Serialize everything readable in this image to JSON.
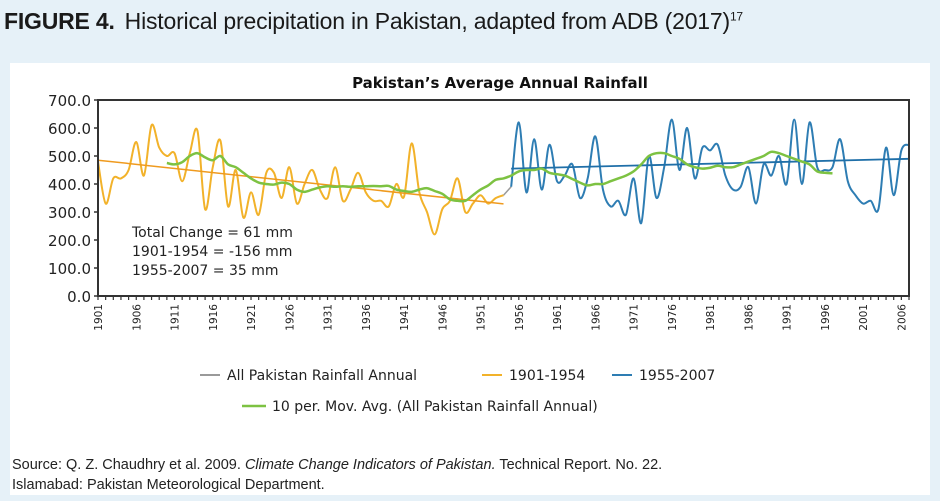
{
  "figure": {
    "number_label": "FIGURE 4.",
    "caption": "Historical precipitation in Pakistan, adapted from ADB (2017)",
    "footnote_ref": "17"
  },
  "source": {
    "prefix": "Source: Q. Z. Chaudhry et al. 2009. ",
    "title_italic": "Climate Change Indicators of Pakistan.",
    "suffix": " Technical Report. No. 22.",
    "line2": "Islamabad: Pakistan Meteorological Department."
  },
  "chart_data": {
    "type": "line",
    "title": "Pakistan’s Average Annual Rainfall",
    "xlabel": "",
    "ylabel": "",
    "xlim": [
      1901,
      2007
    ],
    "ylim": [
      0,
      700
    ],
    "y_ticks": [
      "0.0",
      "100.0",
      "200.0",
      "300.0",
      "400.0",
      "500.0",
      "600.0",
      "700.0"
    ],
    "x_ticks": [
      "1901",
      "1906",
      "1911",
      "1916",
      "1921",
      "1926",
      "1931",
      "1936",
      "1941",
      "1946",
      "1951",
      "1956",
      "1961",
      "1966",
      "1971",
      "1976",
      "1981",
      "1986",
      "1991",
      "1996",
      "2001",
      "2006"
    ],
    "grid": false,
    "legend_position": "bottom",
    "annotations": [
      "Total Change = 61 mm",
      "1901-1954 = -156 mm",
      "1955-2007 = 35 mm"
    ],
    "legend": [
      {
        "label": "All Pakistan Rainfall Annual",
        "color": "#9a9a9a"
      },
      {
        "label": "1901-1954",
        "color": "#f2b22a"
      },
      {
        "label": "1955-2007",
        "color": "#2e7db3"
      },
      {
        "label": "10 per. Mov. Avg. (All Pakistan Rainfall Annual)",
        "color": "#7dc242"
      }
    ],
    "colors": {
      "all": "#9a9a9a",
      "early": "#f2b22a",
      "late": "#2e7db3",
      "early_trend": "#ef9a1e",
      "late_trend": "#1f6fa8",
      "moving_avg": "#7dc242"
    },
    "series": [
      {
        "name": "1901-1954",
        "x_start": 1901,
        "values": [
          480,
          330,
          420,
          420,
          450,
          550,
          430,
          610,
          530,
          500,
          510,
          410,
          510,
          590,
          310,
          460,
          555,
          320,
          450,
          280,
          370,
          290,
          440,
          440,
          350,
          460,
          330,
          400,
          450,
          380,
          350,
          460,
          340,
          380,
          440,
          370,
          340,
          340,
          320,
          400,
          355,
          545,
          370,
          300,
          220,
          310,
          340,
          420,
          300,
          330,
          360,
          330,
          350,
          360
        ]
      },
      {
        "name": "1955-2007",
        "x_start": 1955,
        "values": [
          390,
          620,
          370,
          560,
          380,
          540,
          410,
          430,
          470,
          350,
          420,
          570,
          380,
          320,
          340,
          290,
          420,
          260,
          500,
          350,
          460,
          630,
          450,
          600,
          420,
          530,
          520,
          540,
          430,
          380,
          390,
          460,
          330,
          470,
          430,
          500,
          400,
          630,
          400,
          620,
          460,
          450,
          460,
          560,
          410,
          360,
          330,
          340,
          310,
          530,
          360,
          520,
          540
        ]
      },
      {
        "name": "All Pakistan Rainfall Annual",
        "note": "transition segment connecting the two periods",
        "x": [
          1954,
          1955
        ],
        "values": [
          360,
          390
        ]
      },
      {
        "name": "1901-1954 linear trend",
        "x": [
          1901,
          1954
        ],
        "values": [
          485,
          329
        ]
      },
      {
        "name": "1955-2007 linear trend",
        "x": [
          1955,
          2007
        ],
        "values": [
          455,
          490
        ]
      },
      {
        "name": "10 per. Mov. Avg. (All Pakistan Rainfall Annual)",
        "x_start": 1910,
        "values": [
          475,
          470,
          478,
          500,
          510,
          495,
          485,
          500,
          470,
          460,
          440,
          420,
          405,
          400,
          398,
          405,
          400,
          380,
          372,
          380,
          388,
          392,
          390,
          392,
          390,
          392,
          392,
          393,
          392,
          393,
          380,
          375,
          372,
          380,
          385,
          375,
          365,
          345,
          340,
          340,
          360,
          380,
          395,
          415,
          420,
          430,
          445,
          450,
          450,
          455,
          440,
          435,
          430,
          418,
          405,
          395,
          400,
          400,
          410,
          420,
          430,
          445,
          470,
          500,
          510,
          510,
          500,
          490,
          470,
          460,
          455,
          458,
          465,
          460,
          460,
          470,
          480,
          490,
          500,
          515,
          510,
          500,
          490,
          480,
          470,
          445,
          440,
          438
        ]
      }
    ]
  }
}
